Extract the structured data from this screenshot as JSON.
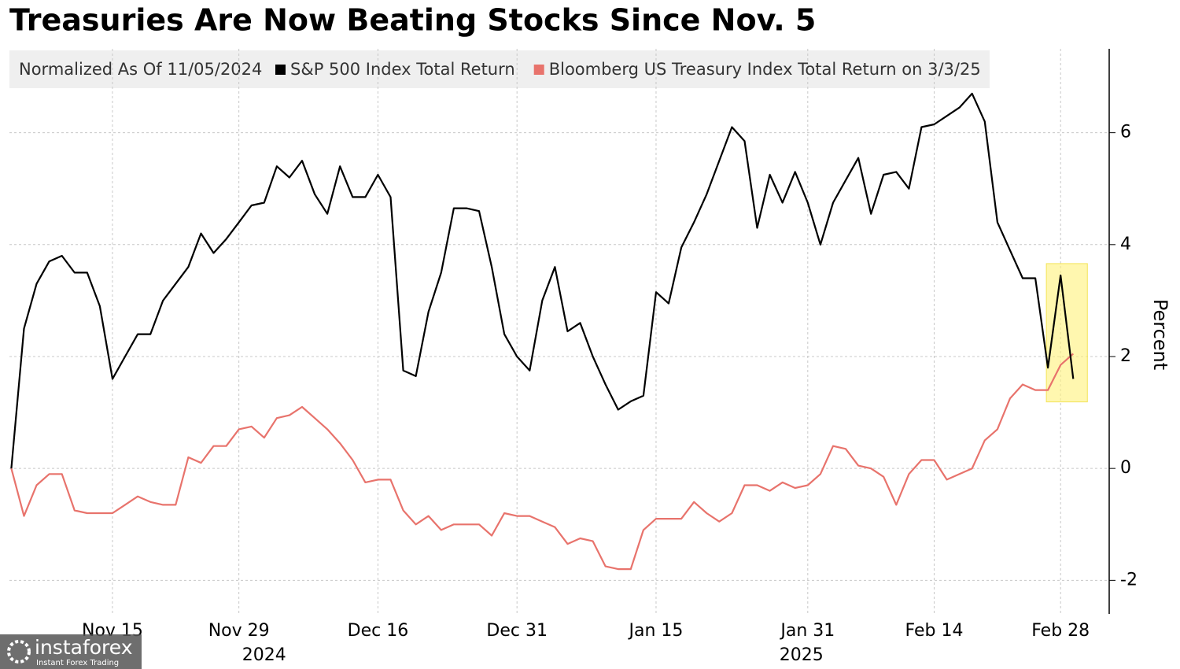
{
  "chart_data": {
    "type": "line",
    "title": "Treasuries Are Now Beating Stocks Since Nov. 5",
    "legend_note": "Normalized As Of 11/05/2024",
    "y_label": "Percent",
    "x": [
      "2024-11-05",
      "2024-11-06",
      "2024-11-07",
      "2024-11-08",
      "2024-11-11",
      "2024-11-12",
      "2024-11-13",
      "2024-11-14",
      "2024-11-15",
      "2024-11-18",
      "2024-11-19",
      "2024-11-20",
      "2024-11-21",
      "2024-11-22",
      "2024-11-25",
      "2024-11-26",
      "2024-11-27",
      "2024-11-28",
      "2024-11-29",
      "2024-12-02",
      "2024-12-03",
      "2024-12-04",
      "2024-12-05",
      "2024-12-06",
      "2024-12-09",
      "2024-12-10",
      "2024-12-11",
      "2024-12-12",
      "2024-12-13",
      "2024-12-16",
      "2024-12-17",
      "2024-12-18",
      "2024-12-19",
      "2024-12-20",
      "2024-12-23",
      "2024-12-24",
      "2024-12-25",
      "2024-12-26",
      "2024-12-27",
      "2024-12-30",
      "2024-12-31",
      "2025-01-01",
      "2025-01-02",
      "2025-01-03",
      "2025-01-06",
      "2025-01-07",
      "2025-01-08",
      "2025-01-09",
      "2025-01-10",
      "2025-01-13",
      "2025-01-14",
      "2025-01-15",
      "2025-01-16",
      "2025-01-17",
      "2025-01-20",
      "2025-01-21",
      "2025-01-22",
      "2025-01-23",
      "2025-01-24",
      "2025-01-27",
      "2025-01-28",
      "2025-01-29",
      "2025-01-30",
      "2025-01-31",
      "2025-02-03",
      "2025-02-04",
      "2025-02-05",
      "2025-02-06",
      "2025-02-07",
      "2025-02-10",
      "2025-02-11",
      "2025-02-12",
      "2025-02-13",
      "2025-02-14",
      "2025-02-17",
      "2025-02-18",
      "2025-02-19",
      "2025-02-20",
      "2025-02-21",
      "2025-02-24",
      "2025-02-25",
      "2025-02-26",
      "2025-02-27",
      "2025-02-28",
      "2025-03-03"
    ],
    "series": [
      {
        "name": "S&P 500 Index Total Return",
        "color": "#000000",
        "values": [
          0,
          2.5,
          3.3,
          3.7,
          3.8,
          3.5,
          3.5,
          2.9,
          1.6,
          2.0,
          2.4,
          2.4,
          3.0,
          3.3,
          3.6,
          4.2,
          3.85,
          4.1,
          4.4,
          4.7,
          4.75,
          5.4,
          5.2,
          5.5,
          4.9,
          4.55,
          5.4,
          4.85,
          4.85,
          5.25,
          4.85,
          1.75,
          1.65,
          2.8,
          3.5,
          4.65,
          4.65,
          4.6,
          3.6,
          2.4,
          2.0,
          1.75,
          3.0,
          3.6,
          2.45,
          2.6,
          2.0,
          1.5,
          1.05,
          1.2,
          1.3,
          3.15,
          2.95,
          3.95,
          4.4,
          4.9,
          5.5,
          6.1,
          5.85,
          4.3,
          5.25,
          4.75,
          5.3,
          4.75,
          4.0,
          4.75,
          5.15,
          5.55,
          4.55,
          5.25,
          5.3,
          5.0,
          6.1,
          6.15,
          6.3,
          6.45,
          6.7,
          6.2,
          4.4,
          3.9,
          3.4,
          3.4,
          1.8,
          3.45,
          1.6
        ]
      },
      {
        "name": "Bloomberg US Treasury Index Total Return on 3/3/25",
        "color": "#e8736c",
        "values": [
          0,
          -0.85,
          -0.3,
          -0.1,
          -0.1,
          -0.75,
          -0.8,
          -0.8,
          -0.8,
          -0.65,
          -0.5,
          -0.6,
          -0.65,
          -0.65,
          0.2,
          0.1,
          0.4,
          0.4,
          0.7,
          0.75,
          0.55,
          0.9,
          0.95,
          1.1,
          0.9,
          0.7,
          0.45,
          0.15,
          -0.25,
          -0.2,
          -0.2,
          -0.75,
          -1.0,
          -0.85,
          -1.1,
          -1.0,
          -1.0,
          -1.0,
          -1.2,
          -0.8,
          -0.85,
          -0.85,
          -0.95,
          -1.05,
          -1.35,
          -1.25,
          -1.3,
          -1.75,
          -1.8,
          -1.8,
          -1.1,
          -0.9,
          -0.9,
          -0.9,
          -0.6,
          -0.8,
          -0.95,
          -0.8,
          -0.3,
          -0.3,
          -0.4,
          -0.25,
          -0.35,
          -0.3,
          -0.1,
          0.4,
          0.35,
          0.05,
          0.0,
          -0.15,
          -0.65,
          -0.1,
          0.15,
          0.15,
          -0.2,
          -0.1,
          0.0,
          0.5,
          0.7,
          1.25,
          1.5,
          1.4,
          1.4,
          1.85,
          2.05
        ]
      }
    ],
    "ylim": [
      -2.6,
      7.5
    ],
    "yticks": [
      -2,
      0,
      2,
      4,
      6
    ],
    "grid": true,
    "xticks": [
      {
        "value": "2024-11-15",
        "label": "Nov 15"
      },
      {
        "value": "2024-11-29",
        "label": "Nov 29"
      },
      {
        "value": "2024-12-16",
        "label": "Dec 16"
      },
      {
        "value": "2024-12-31",
        "label": "Dec 31"
      },
      {
        "value": "2025-01-15",
        "label": "Jan 15"
      },
      {
        "value": "2025-01-31",
        "label": "Jan 31"
      },
      {
        "value": "2025-02-14",
        "label": "Feb 14"
      },
      {
        "value": "2025-02-28",
        "label": "Feb 28"
      }
    ],
    "years": [
      "2024",
      "2025"
    ]
  },
  "watermark": {
    "brand": "instaforex",
    "tagline": "Instant Forex Trading"
  }
}
